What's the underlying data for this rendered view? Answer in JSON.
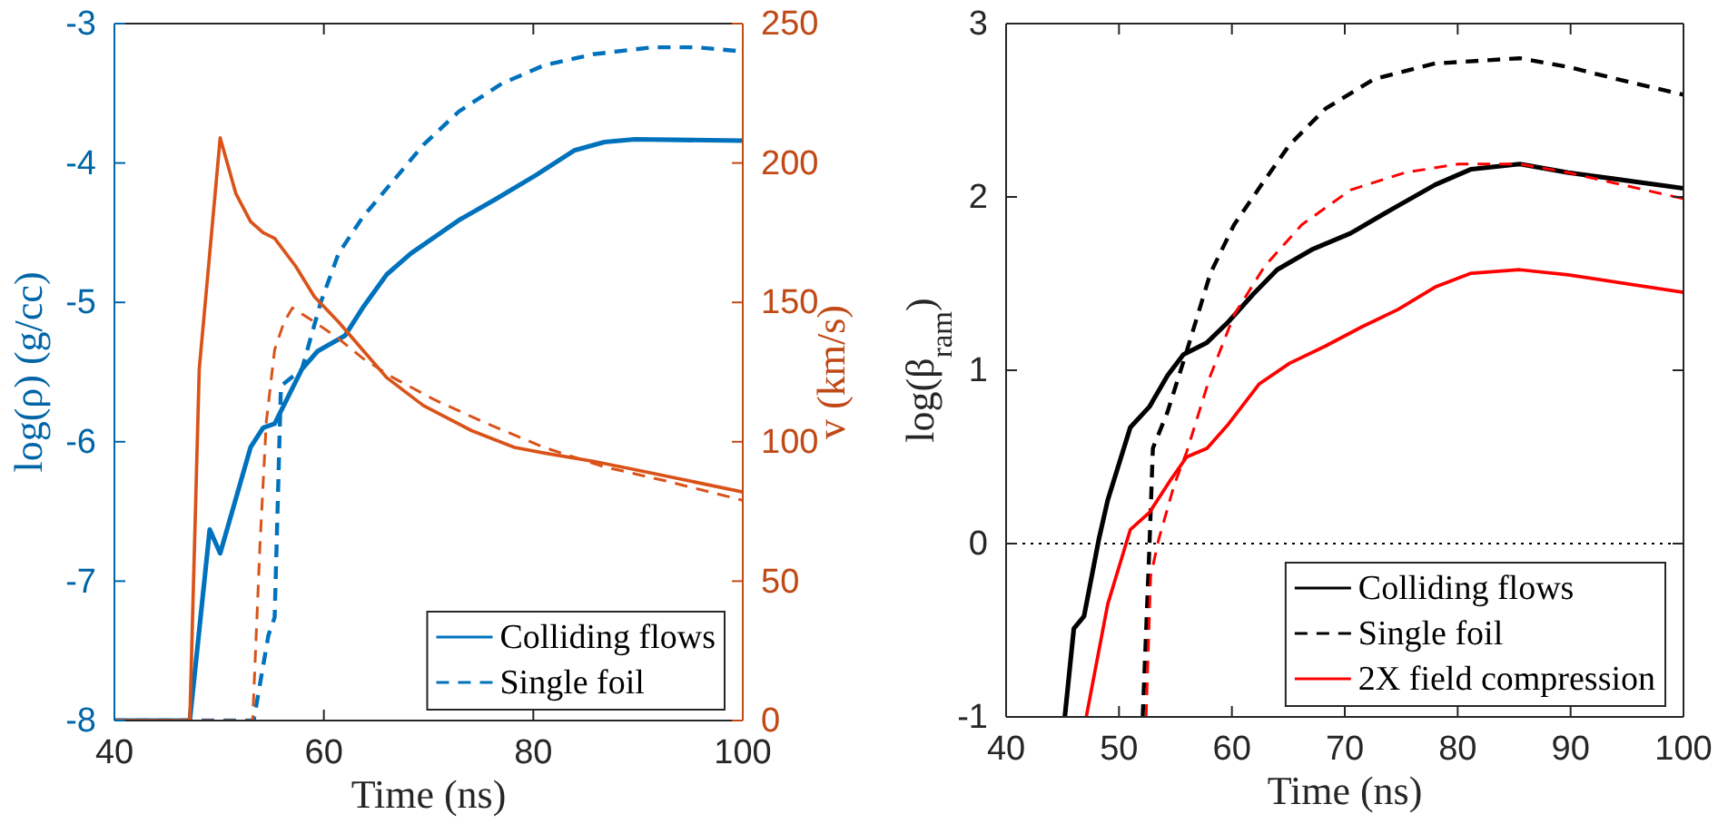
{
  "chart_data": [
    {
      "type": "line",
      "xlabel": "Time (ns)",
      "ylabel": "log(ρ) (g/cc)",
      "y2label": "v (km/s)",
      "xlim": [
        40,
        100
      ],
      "xticks": [
        40,
        60,
        80,
        100
      ],
      "ylim": [
        -8,
        -3
      ],
      "yticks": [
        -8,
        -7,
        -6,
        -5,
        -4,
        -3
      ],
      "y2lim": [
        0,
        250
      ],
      "y2ticks": [
        0,
        50,
        100,
        150,
        200,
        250
      ],
      "grid": false,
      "legend": "bottom right",
      "series": [
        {
          "name": "Colliding flows",
          "color": "#0072bd",
          "line_style": "solid",
          "x": [
            40,
            47.2,
            49.1,
            50.1,
            53.0,
            54.2,
            55.3,
            57.9,
            59.4,
            62.0,
            63.7,
            66,
            68.3,
            72.9,
            76.4,
            80.2,
            83.9,
            86.8,
            89.7,
            100
          ],
          "values": [
            -8,
            -8,
            -6.63,
            -6.8,
            -6.04,
            -5.9,
            -5.87,
            -5.48,
            -5.35,
            -5.24,
            -5.04,
            -4.8,
            -4.65,
            -4.41,
            -4.26,
            -4.09,
            -3.91,
            -3.85,
            -3.83,
            -3.84
          ]
        },
        {
          "name": "Single foil",
          "color": "#0072bd",
          "line_style": "dashed",
          "x": [
            40,
            53.3,
            54.7,
            55.3,
            55.9,
            57.9,
            59.7,
            61.4,
            63.7,
            66.6,
            69.5,
            72.9,
            77,
            81,
            85.7,
            91.4,
            95.5,
            100
          ],
          "values": [
            -8,
            -8,
            -7.39,
            -7.26,
            -5.6,
            -5.48,
            -5.0,
            -4.65,
            -4.39,
            -4.13,
            -3.87,
            -3.63,
            -3.43,
            -3.3,
            -3.22,
            -3.17,
            -3.17,
            -3.2
          ]
        },
        {
          "color": "#d95319",
          "line_style": "solid",
          "axis": "y2",
          "x": [
            40,
            47.2,
            48.1,
            50.1,
            51.6,
            53,
            54.2,
            55.3,
            57.3,
            59.1,
            61.4,
            63.7,
            66,
            69.5,
            74.1,
            78.2,
            81,
            85.7,
            89.7,
            100
          ],
          "values": [
            0,
            0,
            126,
            209,
            189,
            179,
            175,
            173,
            163,
            152,
            143,
            133,
            123,
            113,
            104,
            98,
            96,
            93,
            90,
            82
          ]
        },
        {
          "color": "#d95319",
          "line_style": "dashed",
          "axis": "y2",
          "x": [
            40,
            53.2,
            53.9,
            54.5,
            55.3,
            56.2,
            57,
            59.1,
            61.4,
            63.7,
            66.6,
            70.6,
            75.3,
            81,
            86.8,
            92.6,
            100
          ],
          "values": [
            0,
            0,
            63,
            107,
            133,
            143,
            148,
            143,
            137,
            130,
            123,
            115,
            107,
            98,
            91,
            86,
            79
          ]
        }
      ]
    },
    {
      "type": "line",
      "xlabel": "Time (ns)",
      "ylabel": "log(β$_{ram}$)",
      "xlim": [
        40,
        100
      ],
      "xticks": [
        40,
        50,
        60,
        70,
        80,
        90,
        100
      ],
      "ylim": [
        -1,
        3
      ],
      "yticks": [
        -1,
        0,
        1,
        2,
        3
      ],
      "grid": false,
      "legend": "bottom right",
      "ref_lines": [
        {
          "axis": "y",
          "value": 0,
          "color": "#000000",
          "line_style": "dotted"
        }
      ],
      "series": [
        {
          "name": "Colliding flows",
          "color": "#000000",
          "line_style": "solid",
          "x": [
            45.2,
            46.0,
            46.9,
            48.2,
            49.0,
            51.0,
            52.7,
            54.3,
            55.7,
            57.8,
            59.7,
            61.9,
            64.0,
            67.2,
            70.5,
            74.2,
            78,
            81.2,
            85.5,
            89.8,
            100
          ],
          "values": [
            -1,
            -0.49,
            -0.42,
            0.02,
            0.25,
            0.67,
            0.79,
            0.97,
            1.09,
            1.16,
            1.28,
            1.44,
            1.58,
            1.7,
            1.79,
            1.93,
            2.07,
            2.16,
            2.19,
            2.14,
            2.05
          ]
        },
        {
          "name": "Single foil",
          "color": "#000000",
          "line_style": "dashed",
          "x": [
            52.1,
            52.7,
            53.0,
            54.3,
            56.0,
            58.1,
            60.2,
            62.4,
            65.1,
            68.3,
            72.6,
            78,
            85.5,
            89.8,
            94.1,
            100
          ],
          "values": [
            -1,
            -0.01,
            0.55,
            0.76,
            1.11,
            1.56,
            1.84,
            2.05,
            2.3,
            2.51,
            2.68,
            2.77,
            2.8,
            2.75,
            2.68,
            2.59
          ]
        },
        {
          "name": "2X field compression",
          "color": "#ff0000",
          "line_style": "solid",
          "x": [
            47.1,
            49,
            51,
            52.7,
            54.6,
            56,
            57.8,
            59.7,
            62.4,
            65.1,
            68.3,
            71.5,
            74.7,
            78,
            81.2,
            85.5,
            89.8,
            100
          ],
          "values": [
            -1,
            -0.35,
            0.08,
            0.18,
            0.37,
            0.5,
            0.55,
            0.69,
            0.92,
            1.04,
            1.14,
            1.25,
            1.35,
            1.48,
            1.56,
            1.58,
            1.55,
            1.45
          ]
        },
        {
          "color": "#ff0000",
          "line_style": "dashed",
          "x": [
            52.4,
            52.8,
            53.5,
            54.9,
            56,
            58.1,
            60.2,
            62.9,
            66.2,
            70.5,
            75.3,
            80.1,
            85.5,
            89.8,
            100
          ],
          "values": [
            -1,
            -0.19,
            0.02,
            0.34,
            0.53,
            0.97,
            1.32,
            1.6,
            1.84,
            2.04,
            2.14,
            2.19,
            2.19,
            2.14,
            1.99
          ]
        }
      ]
    }
  ]
}
